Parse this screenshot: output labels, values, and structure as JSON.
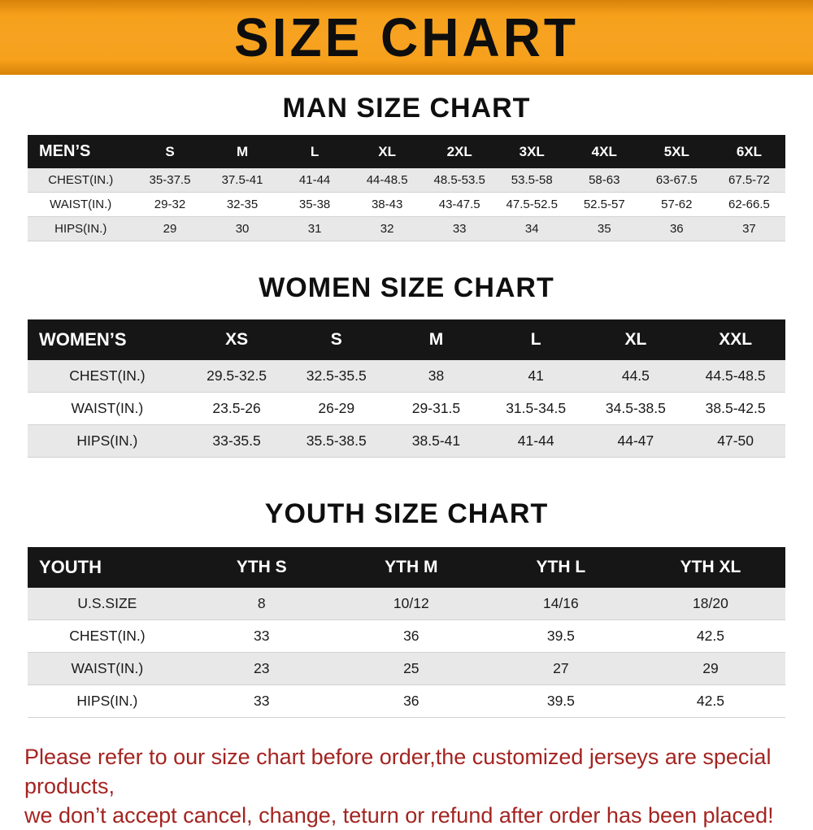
{
  "banner": {
    "title": "SIZE CHART"
  },
  "sections": [
    {
      "heading": "MAN SIZE CHART"
    },
    {
      "heading": "WOMEN SIZE CHART"
    },
    {
      "heading": "YOUTH SIZE CHART"
    }
  ],
  "chart_data": [
    {
      "type": "table",
      "title": "MAN SIZE CHART",
      "header": [
        "MEN’S",
        "S",
        "M",
        "L",
        "XL",
        "2XL",
        "3XL",
        "4XL",
        "5XL",
        "6XL"
      ],
      "rows": [
        [
          "CHEST(IN.)",
          "35-37.5",
          "37.5-41",
          "41-44",
          "44-48.5",
          "48.5-53.5",
          "53.5-58",
          "58-63",
          "63-67.5",
          "67.5-72"
        ],
        [
          "WAIST(IN.)",
          "29-32",
          "32-35",
          "35-38",
          "38-43",
          "43-47.5",
          "47.5-52.5",
          "52.5-57",
          "57-62",
          "62-66.5"
        ],
        [
          "HIPS(IN.)",
          "29",
          "30",
          "31",
          "32",
          "33",
          "34",
          "35",
          "36",
          "37"
        ]
      ]
    },
    {
      "type": "table",
      "title": "WOMEN SIZE CHART",
      "header": [
        "WOMEN’S",
        "XS",
        "S",
        "M",
        "L",
        "XL",
        "XXL"
      ],
      "rows": [
        [
          "CHEST(IN.)",
          "29.5-32.5",
          "32.5-35.5",
          "38",
          "41",
          "44.5",
          "44.5-48.5"
        ],
        [
          "WAIST(IN.)",
          "23.5-26",
          "26-29",
          "29-31.5",
          "31.5-34.5",
          "34.5-38.5",
          "38.5-42.5"
        ],
        [
          "HIPS(IN.)",
          "33-35.5",
          "35.5-38.5",
          "38.5-41",
          "41-44",
          "44-47",
          "47-50"
        ]
      ]
    },
    {
      "type": "table",
      "title": "YOUTH SIZE CHART",
      "header": [
        "YOUTH",
        "YTH S",
        "YTH M",
        "YTH L",
        "YTH XL"
      ],
      "rows": [
        [
          "U.S.SIZE",
          "8",
          "10/12",
          "14/16",
          "18/20"
        ],
        [
          "CHEST(IN.)",
          "33",
          "36",
          "39.5",
          "42.5"
        ],
        [
          "WAIST(IN.)",
          "23",
          "25",
          "27",
          "29"
        ],
        [
          "HIPS(IN.)",
          "33",
          "36",
          "39.5",
          "42.5"
        ]
      ]
    }
  ],
  "footer": {
    "line1": "Please refer to our size chart before order,the customized jerseys are special products,",
    "line2": "we don’t accept cancel, change, teturn or refund after order has been placed!"
  },
  "colors": {
    "banner_orange": "#f6a01b",
    "table_header_black": "#161616",
    "row_stripe_gray": "#e8e8e8",
    "footer_red": "#a42421"
  }
}
